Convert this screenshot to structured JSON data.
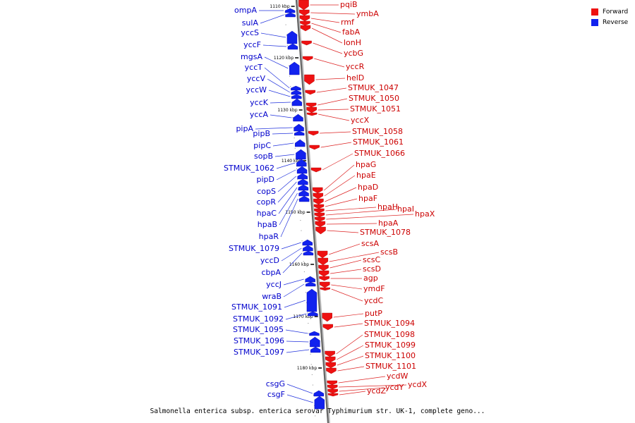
{
  "title": "Salmonella enterica subsp. enterica serovar Typhimurium str. UK-1, complete geno...",
  "legend": [
    {
      "label": "Forward",
      "color": "#ee1111"
    },
    {
      "label": "Reverse",
      "color": "#1122ee"
    }
  ],
  "ticks": [
    "1110 kbp",
    "1120 kbp",
    "1130 kbp",
    "1140 kbp",
    "1150 kbp",
    "1160 kbp",
    "1170 kbp",
    "1180 kbp"
  ],
  "forward_genes": [
    "pqiB",
    "ymbA",
    "rmf",
    "fabA",
    "lonH",
    "ycbG",
    "yccR",
    "helD",
    "STMUK_1047",
    "STMUK_1050",
    "STMUK_1051",
    "yccX",
    "STMUK_1058",
    "STMUK_1061",
    "STMUK_1066",
    "hpaG",
    "hpaE",
    "hpaD",
    "hpaF",
    "hpaH",
    "hpaI",
    "hpaX",
    "hpaA",
    "STMUK_1078",
    "scsA",
    "scsB",
    "scsC",
    "scsD",
    "agp",
    "ymdF",
    "ycdC",
    "putP",
    "STMUK_1094",
    "STMUK_1098",
    "STMUK_1099",
    "STMUK_1100",
    "STMUK_1101",
    "ycdW",
    "ycdX",
    "ycdY",
    "ycdZ"
  ],
  "reverse_genes": [
    "ompA",
    "sulA",
    "yccS",
    "yccF",
    "mgsA",
    "yccT",
    "yccV",
    "yccW",
    "yccK",
    "yccA",
    "pipA",
    "pipB",
    "pipC",
    "sopB",
    "STMUK_1062",
    "pipD",
    "copS",
    "copR",
    "hpaC",
    "hpaB",
    "hpaR",
    "STMUK_1079",
    "yccD",
    "cbpA",
    "yccJ",
    "wraB",
    "STMUK_1091",
    "STMUK_1092",
    "STMUK_1095",
    "STMUK_1096",
    "STMUK_1097",
    "csgG",
    "csgF"
  ]
}
